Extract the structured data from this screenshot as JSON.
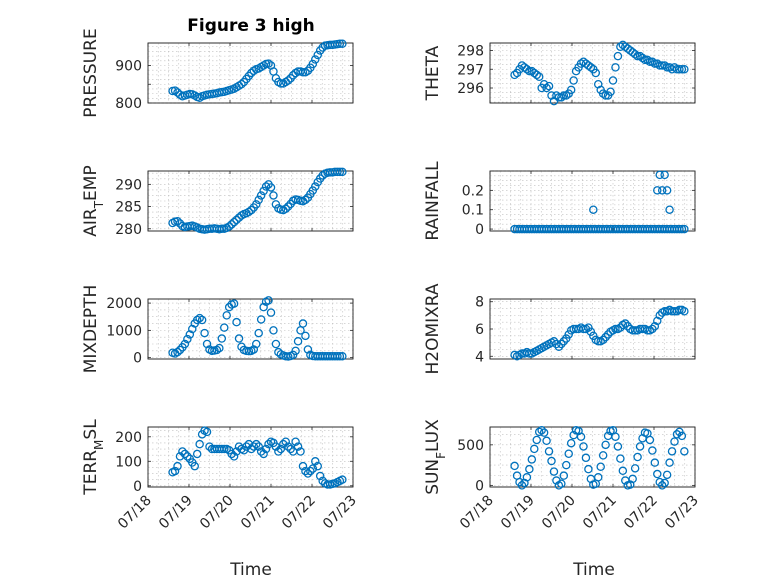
{
  "figure_title": "Figure 3 high",
  "xlabel": "Time",
  "colors": {
    "marker": "#0072BD",
    "axes": "#262626",
    "grid": "#bfbfbf"
  },
  "xticks": [
    "07/18",
    "07/19",
    "07/20",
    "07/21",
    "07/22",
    "07/23"
  ],
  "chart_data": [
    {
      "type": "scatter",
      "key": "pressure",
      "ylabel": "PRESSURE",
      "xlim": [
        0,
        5
      ],
      "ylim": [
        800,
        960
      ],
      "yticks": [
        800,
        850,
        900
      ],
      "yticklabels": [
        "800",
        "",
        "900"
      ],
      "x": [
        0.6,
        0.66,
        0.72,
        0.78,
        0.84,
        0.9,
        0.96,
        1.02,
        1.08,
        1.14,
        1.2,
        1.26,
        1.32,
        1.38,
        1.44,
        1.5,
        1.56,
        1.62,
        1.68,
        1.74,
        1.8,
        1.86,
        1.92,
        1.98,
        2.04,
        2.1,
        2.16,
        2.22,
        2.28,
        2.34,
        2.4,
        2.46,
        2.52,
        2.58,
        2.64,
        2.7,
        2.76,
        2.82,
        2.88,
        2.94,
        3.0,
        3.06,
        3.12,
        3.18,
        3.24,
        3.3,
        3.36,
        3.42,
        3.48,
        3.54,
        3.6,
        3.66,
        3.72,
        3.78,
        3.84,
        3.9,
        3.96,
        4.02,
        4.08,
        4.14,
        4.2,
        4.26,
        4.32,
        4.38,
        4.44,
        4.5,
        4.56,
        4.62,
        4.68,
        4.74
      ],
      "y": [
        832,
        833,
        828,
        822,
        818,
        820,
        822,
        824,
        823,
        820,
        816,
        814,
        818,
        820,
        822,
        823,
        824,
        825,
        826,
        828,
        829,
        830,
        832,
        834,
        836,
        838,
        842,
        846,
        850,
        856,
        864,
        872,
        880,
        886,
        890,
        892,
        896,
        900,
        904,
        905,
        900,
        884,
        866,
        856,
        852,
        852,
        856,
        860,
        866,
        874,
        880,
        884,
        884,
        882,
        882,
        886,
        894,
        904,
        916,
        928,
        940,
        948,
        953,
        954,
        955,
        955,
        956,
        957,
        958,
        958
      ]
    },
    {
      "type": "scatter",
      "key": "theta",
      "ylabel": "THETA",
      "xlim": [
        0,
        5
      ],
      "ylim": [
        295.2,
        298.4
      ],
      "yticks": [
        296,
        297,
        298
      ],
      "yticklabels": [
        "296",
        "297",
        "298"
      ],
      "x": [
        0.6,
        0.66,
        0.72,
        0.78,
        0.84,
        0.9,
        0.96,
        1.02,
        1.08,
        1.14,
        1.2,
        1.26,
        1.32,
        1.38,
        1.44,
        1.5,
        1.56,
        1.62,
        1.68,
        1.74,
        1.8,
        1.86,
        1.92,
        1.98,
        2.04,
        2.1,
        2.16,
        2.22,
        2.28,
        2.34,
        2.4,
        2.46,
        2.52,
        2.58,
        2.64,
        2.7,
        2.76,
        2.82,
        2.88,
        2.94,
        3.0,
        3.06,
        3.12,
        3.18,
        3.24,
        3.3,
        3.36,
        3.42,
        3.48,
        3.54,
        3.6,
        3.66,
        3.72,
        3.78,
        3.84,
        3.9,
        3.96,
        4.02,
        4.08,
        4.14,
        4.2,
        4.26,
        4.32,
        4.38,
        4.44,
        4.5,
        4.56,
        4.62,
        4.68,
        4.74
      ],
      "y": [
        296.7,
        296.8,
        297.0,
        297.2,
        297.1,
        297.0,
        296.9,
        296.9,
        296.8,
        296.7,
        296.6,
        296.0,
        296.2,
        296.0,
        296.1,
        295.6,
        295.3,
        295.6,
        295.5,
        295.5,
        295.6,
        295.6,
        295.7,
        295.9,
        296.4,
        296.9,
        297.1,
        297.3,
        297.4,
        297.3,
        297.2,
        297.1,
        297.0,
        296.8,
        296.2,
        295.9,
        295.7,
        295.6,
        295.6,
        295.8,
        296.4,
        297.1,
        297.7,
        298.2,
        298.3,
        298.2,
        298.1,
        298.0,
        297.9,
        297.8,
        297.7,
        297.7,
        297.6,
        297.5,
        297.5,
        297.4,
        297.4,
        297.3,
        297.3,
        297.2,
        297.2,
        297.2,
        297.1,
        297.1,
        297.0,
        297.1,
        297.0,
        297.0,
        297.0,
        297.0
      ]
    },
    {
      "type": "scatter",
      "key": "air_temp",
      "ylabel": "AIR_TEMP",
      "xlim": [
        0,
        5
      ],
      "ylim": [
        279.5,
        293
      ],
      "yticks": [
        280,
        285,
        290
      ],
      "yticklabels": [
        "280",
        "285",
        "290"
      ],
      "x": [
        0.6,
        0.66,
        0.72,
        0.78,
        0.84,
        0.9,
        0.96,
        1.02,
        1.08,
        1.14,
        1.2,
        1.26,
        1.32,
        1.38,
        1.44,
        1.5,
        1.56,
        1.62,
        1.68,
        1.74,
        1.8,
        1.86,
        1.92,
        1.98,
        2.04,
        2.1,
        2.16,
        2.22,
        2.28,
        2.34,
        2.4,
        2.46,
        2.52,
        2.58,
        2.64,
        2.7,
        2.76,
        2.82,
        2.88,
        2.94,
        3.0,
        3.06,
        3.12,
        3.18,
        3.24,
        3.3,
        3.36,
        3.42,
        3.48,
        3.54,
        3.6,
        3.66,
        3.72,
        3.78,
        3.84,
        3.9,
        3.96,
        4.02,
        4.08,
        4.14,
        4.2,
        4.26,
        4.32,
        4.38,
        4.44,
        4.5,
        4.56,
        4.62,
        4.68,
        4.74
      ],
      "y": [
        281.3,
        281.6,
        281.7,
        281.2,
        280.6,
        280.4,
        280.5,
        280.6,
        280.7,
        280.5,
        280.3,
        280.0,
        279.9,
        279.8,
        279.9,
        280.0,
        280.0,
        280.1,
        280.0,
        279.9,
        280.0,
        280.0,
        280.2,
        280.5,
        281.0,
        281.5,
        282.0,
        282.5,
        283.0,
        283.3,
        283.5,
        283.8,
        284.2,
        284.8,
        285.5,
        286.5,
        287.5,
        288.5,
        289.5,
        290.0,
        289.3,
        287.5,
        285.5,
        284.6,
        284.3,
        284.2,
        284.5,
        285.0,
        285.6,
        286.3,
        286.6,
        286.5,
        286.3,
        286.2,
        286.5,
        287.0,
        287.8,
        288.6,
        289.5,
        290.5,
        291.3,
        292.0,
        292.4,
        292.6,
        292.7,
        292.7,
        292.8,
        292.8,
        292.8,
        292.8
      ]
    },
    {
      "type": "scatter",
      "key": "rainfall",
      "ylabel": "RAINFALL",
      "xlim": [
        0,
        5
      ],
      "ylim": [
        -0.01,
        0.3
      ],
      "yticks": [
        0,
        0.1,
        0.2
      ],
      "yticklabels": [
        "0",
        "0.1",
        "0.2"
      ],
      "x": [
        0.6,
        0.66,
        0.72,
        0.78,
        0.84,
        0.9,
        0.96,
        1.02,
        1.08,
        1.14,
        1.2,
        1.26,
        1.32,
        1.38,
        1.44,
        1.5,
        1.56,
        1.62,
        1.68,
        1.74,
        1.8,
        1.86,
        1.92,
        1.98,
        2.04,
        2.1,
        2.16,
        2.22,
        2.28,
        2.34,
        2.4,
        2.46,
        2.52,
        2.58,
        2.64,
        2.7,
        2.76,
        2.82,
        2.88,
        2.94,
        3.0,
        3.06,
        3.12,
        3.18,
        3.24,
        3.3,
        3.36,
        3.42,
        3.48,
        3.54,
        3.6,
        3.66,
        3.72,
        3.78,
        3.84,
        3.9,
        3.96,
        4.02,
        4.08,
        4.14,
        4.2,
        4.26,
        4.32,
        4.38,
        4.44,
        4.5,
        4.56,
        4.62,
        4.68,
        4.74,
        2.52,
        4.08,
        4.14,
        4.2,
        4.26,
        4.32,
        4.38
      ],
      "y": [
        0,
        0,
        0,
        0,
        0,
        0,
        0,
        0,
        0,
        0,
        0,
        0,
        0,
        0,
        0,
        0,
        0,
        0,
        0,
        0,
        0,
        0,
        0,
        0,
        0,
        0,
        0,
        0,
        0,
        0,
        0,
        0,
        0,
        0,
        0,
        0,
        0,
        0,
        0,
        0,
        0,
        0,
        0,
        0,
        0,
        0,
        0,
        0,
        0,
        0,
        0,
        0,
        0,
        0,
        0,
        0,
        0,
        0,
        0,
        0,
        0,
        0,
        0,
        0,
        0,
        0,
        0,
        0,
        0,
        0,
        0.1,
        0.2,
        0.28,
        0.2,
        0.28,
        0.2,
        0.1
      ]
    },
    {
      "type": "scatter",
      "key": "mixdepth",
      "ylabel": "MIXDEPTH",
      "xlim": [
        0,
        5
      ],
      "ylim": [
        -50,
        2150
      ],
      "yticks": [
        0,
        1000,
        2000
      ],
      "yticklabels": [
        "0",
        "1000",
        "2000"
      ],
      "x": [
        0.6,
        0.66,
        0.72,
        0.78,
        0.84,
        0.9,
        0.96,
        1.02,
        1.08,
        1.14,
        1.2,
        1.26,
        1.32,
        1.38,
        1.44,
        1.5,
        1.56,
        1.62,
        1.68,
        1.74,
        1.8,
        1.86,
        1.92,
        1.98,
        2.04,
        2.1,
        2.16,
        2.22,
        2.28,
        2.34,
        2.4,
        2.46,
        2.52,
        2.58,
        2.64,
        2.7,
        2.76,
        2.82,
        2.88,
        2.94,
        3.0,
        3.06,
        3.12,
        3.18,
        3.24,
        3.3,
        3.36,
        3.42,
        3.48,
        3.54,
        3.6,
        3.66,
        3.72,
        3.78,
        3.84,
        3.9,
        3.96,
        4.02,
        4.08,
        4.14,
        4.2,
        4.26,
        4.32,
        4.38,
        4.44,
        4.5,
        4.56,
        4.62,
        4.68,
        4.74
      ],
      "y": [
        180,
        150,
        200,
        280,
        380,
        500,
        680,
        850,
        1050,
        1250,
        1380,
        1450,
        1380,
        900,
        500,
        300,
        250,
        260,
        280,
        350,
        700,
        1100,
        1550,
        1850,
        1950,
        1980,
        1300,
        700,
        400,
        280,
        250,
        240,
        250,
        300,
        500,
        900,
        1400,
        1850,
        2050,
        2100,
        1650,
        1000,
        500,
        200,
        120,
        80,
        50,
        40,
        60,
        100,
        250,
        600,
        1000,
        1250,
        800,
        300,
        100,
        60,
        50,
        50,
        50,
        50,
        50,
        50,
        50,
        50,
        50,
        50,
        50,
        50
      ]
    },
    {
      "type": "scatter",
      "key": "h2omixra",
      "ylabel": "H2OMIXRA",
      "xlim": [
        0,
        5
      ],
      "ylim": [
        3.8,
        8.2
      ],
      "yticks": [
        4,
        6,
        8
      ],
      "yticklabels": [
        "4",
        "6",
        "8"
      ],
      "x": [
        0.6,
        0.66,
        0.72,
        0.78,
        0.84,
        0.9,
        0.96,
        1.02,
        1.08,
        1.14,
        1.2,
        1.26,
        1.32,
        1.38,
        1.44,
        1.5,
        1.56,
        1.62,
        1.68,
        1.74,
        1.8,
        1.86,
        1.92,
        1.98,
        2.04,
        2.1,
        2.16,
        2.22,
        2.28,
        2.34,
        2.4,
        2.46,
        2.52,
        2.58,
        2.64,
        2.7,
        2.76,
        2.82,
        2.88,
        2.94,
        3.0,
        3.06,
        3.12,
        3.18,
        3.24,
        3.3,
        3.36,
        3.42,
        3.48,
        3.54,
        3.6,
        3.66,
        3.72,
        3.78,
        3.84,
        3.9,
        3.96,
        4.02,
        4.08,
        4.14,
        4.2,
        4.26,
        4.32,
        4.38,
        4.44,
        4.5,
        4.56,
        4.62,
        4.68,
        4.74
      ],
      "y": [
        4.1,
        4.0,
        4.1,
        4.2,
        4.2,
        4.3,
        4.2,
        4.2,
        4.3,
        4.4,
        4.5,
        4.6,
        4.7,
        4.8,
        4.9,
        5.0,
        5.1,
        4.9,
        4.7,
        4.9,
        5.1,
        5.3,
        5.6,
        5.9,
        6.0,
        6.0,
        6.0,
        6.1,
        6.0,
        6.0,
        6.1,
        5.8,
        5.5,
        5.2,
        5.1,
        5.1,
        5.2,
        5.4,
        5.6,
        5.8,
        5.9,
        6.0,
        6.0,
        6.1,
        6.3,
        6.4,
        6.2,
        6.0,
        5.9,
        5.9,
        5.9,
        6.0,
        6.0,
        6.0,
        5.9,
        5.9,
        6.0,
        6.2,
        6.6,
        7.0,
        7.2,
        7.3,
        7.3,
        7.4,
        7.3,
        7.3,
        7.3,
        7.4,
        7.4,
        7.3
      ]
    },
    {
      "type": "scatter",
      "key": "terr_msl",
      "ylabel": "TERR_MSL",
      "xlim": [
        0,
        5
      ],
      "ylim": [
        -5,
        240
      ],
      "yticks": [
        0,
        100,
        200
      ],
      "yticklabels": [
        "0",
        "100",
        "200"
      ],
      "x": [
        0.6,
        0.66,
        0.72,
        0.78,
        0.84,
        0.9,
        0.96,
        1.02,
        1.08,
        1.14,
        1.2,
        1.26,
        1.32,
        1.38,
        1.44,
        1.5,
        1.56,
        1.62,
        1.68,
        1.74,
        1.8,
        1.86,
        1.92,
        1.98,
        2.04,
        2.1,
        2.16,
        2.22,
        2.28,
        2.34,
        2.4,
        2.46,
        2.52,
        2.58,
        2.64,
        2.7,
        2.76,
        2.82,
        2.88,
        2.94,
        3.0,
        3.06,
        3.12,
        3.18,
        3.24,
        3.3,
        3.36,
        3.42,
        3.48,
        3.54,
        3.6,
        3.66,
        3.72,
        3.78,
        3.84,
        3.9,
        3.96,
        4.02,
        4.08,
        4.14,
        4.2,
        4.26,
        4.32,
        4.38,
        4.44,
        4.5,
        4.56,
        4.62,
        4.68,
        4.74
      ],
      "y": [
        55,
        60,
        80,
        120,
        140,
        130,
        120,
        110,
        95,
        80,
        130,
        170,
        210,
        225,
        220,
        160,
        150,
        150,
        150,
        150,
        150,
        150,
        150,
        145,
        130,
        120,
        140,
        160,
        150,
        145,
        160,
        170,
        150,
        160,
        170,
        160,
        140,
        130,
        150,
        170,
        180,
        175,
        160,
        140,
        150,
        170,
        180,
        160,
        150,
        140,
        180,
        160,
        140,
        80,
        60,
        50,
        60,
        70,
        100,
        80,
        40,
        20,
        10,
        5,
        5,
        8,
        10,
        15,
        20,
        25
      ]
    },
    {
      "type": "scatter",
      "key": "sun_flux",
      "ylabel": "SUN_FLUX",
      "xlim": [
        0,
        5
      ],
      "ylim": [
        -20,
        720
      ],
      "yticks": [
        0,
        500
      ],
      "yticklabels": [
        "0",
        "500"
      ],
      "x": [
        0.6,
        0.66,
        0.72,
        0.78,
        0.84,
        0.9,
        0.96,
        1.02,
        1.08,
        1.14,
        1.2,
        1.26,
        1.32,
        1.38,
        1.44,
        1.5,
        1.56,
        1.62,
        1.68,
        1.74,
        1.8,
        1.86,
        1.92,
        1.98,
        2.04,
        2.1,
        2.16,
        2.22,
        2.28,
        2.34,
        2.4,
        2.46,
        2.52,
        2.58,
        2.64,
        2.7,
        2.76,
        2.82,
        2.88,
        2.94,
        3.0,
        3.06,
        3.12,
        3.18,
        3.24,
        3.3,
        3.36,
        3.42,
        3.48,
        3.54,
        3.6,
        3.66,
        3.72,
        3.78,
        3.84,
        3.9,
        3.96,
        4.02,
        4.08,
        4.14,
        4.2,
        4.26,
        4.32,
        4.38,
        4.44,
        4.5,
        4.56,
        4.62,
        4.68,
        4.74
      ],
      "y": [
        240,
        120,
        40,
        0,
        30,
        100,
        200,
        320,
        450,
        560,
        660,
        680,
        650,
        550,
        420,
        300,
        170,
        60,
        0,
        20,
        120,
        250,
        390,
        520,
        620,
        680,
        670,
        600,
        480,
        340,
        200,
        80,
        10,
        20,
        100,
        230,
        370,
        500,
        610,
        670,
        680,
        600,
        480,
        330,
        180,
        60,
        0,
        10,
        80,
        210,
        350,
        480,
        580,
        650,
        640,
        560,
        430,
        280,
        140,
        40,
        0,
        30,
        130,
        280,
        420,
        540,
        630,
        660,
        610,
        420
      ]
    }
  ]
}
